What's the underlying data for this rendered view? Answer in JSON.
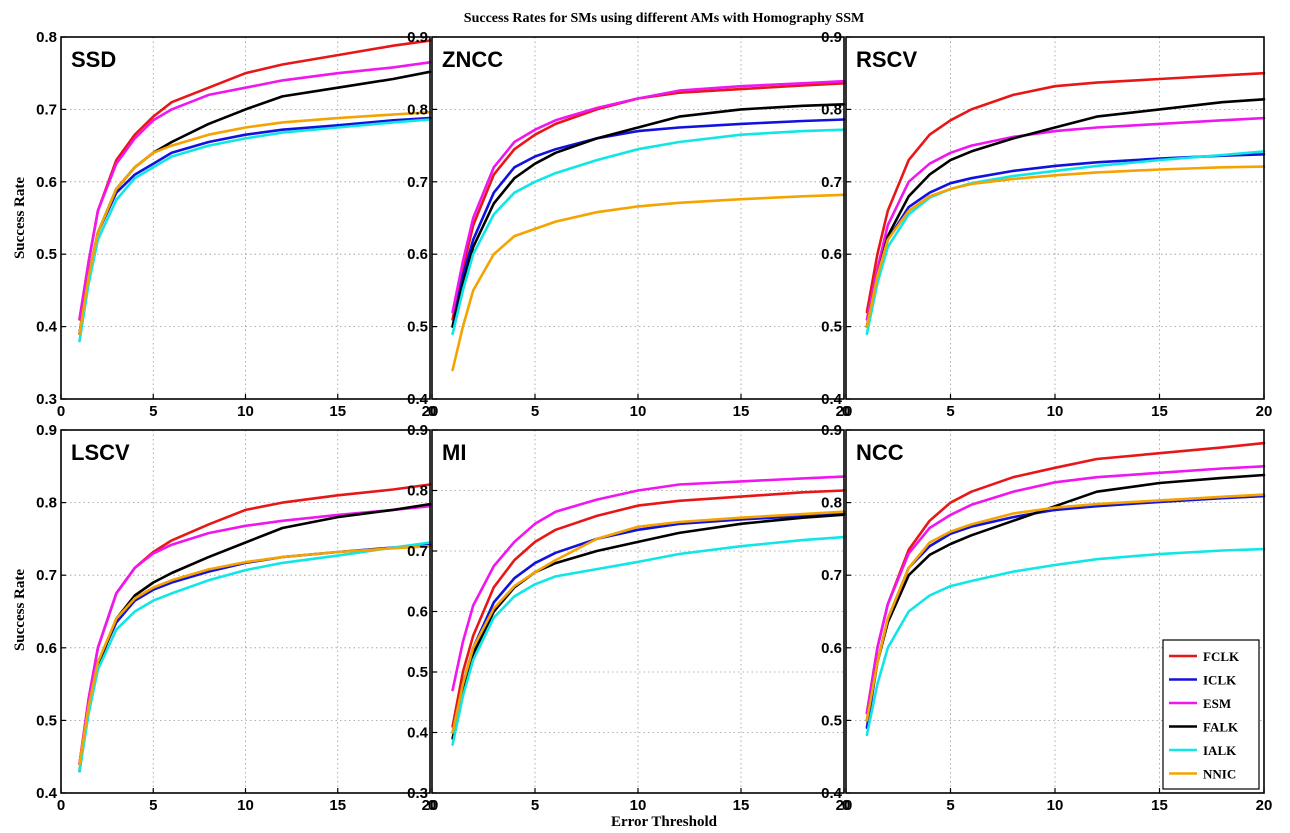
{
  "title": "Success Rates for SMs using different AMs with Homography SSM",
  "xlabel": "Error Threshold",
  "ylabel": "Success Rate",
  "colors": {
    "FCLK": "#e81717",
    "ICLK": "#1212dd",
    "ESM": "#f016f0",
    "FALK": "#000000",
    "IALK": "#11e6e6",
    "NNIC": "#f5a300"
  },
  "legend": {
    "placement": "bottom-right of NCC panel",
    "entries": [
      "FCLK",
      "ICLK",
      "ESM",
      "FALK",
      "IALK",
      "NNIC"
    ]
  },
  "chart_data": [
    {
      "type": "line",
      "title": "SSD",
      "xlim": [
        0,
        20
      ],
      "ylim": [
        0.3,
        0.8
      ],
      "xticks": [
        0,
        5,
        10,
        15,
        20
      ],
      "yticks": [
        0.3,
        0.4,
        0.5,
        0.6,
        0.7,
        0.8
      ],
      "grid": true,
      "x": [
        1,
        1.5,
        2,
        3,
        4,
        5,
        6,
        8,
        10,
        12,
        15,
        18,
        20
      ],
      "series": [
        {
          "name": "FCLK",
          "values": [
            0.41,
            0.49,
            0.56,
            0.63,
            0.665,
            0.69,
            0.71,
            0.73,
            0.75,
            0.762,
            0.775,
            0.788,
            0.795
          ]
        },
        {
          "name": "ICLK",
          "values": [
            0.39,
            0.47,
            0.53,
            0.585,
            0.61,
            0.625,
            0.64,
            0.655,
            0.665,
            0.672,
            0.678,
            0.685,
            0.688
          ]
        },
        {
          "name": "ESM",
          "values": [
            0.41,
            0.49,
            0.56,
            0.625,
            0.66,
            0.685,
            0.7,
            0.72,
            0.73,
            0.74,
            0.75,
            0.758,
            0.765
          ]
        },
        {
          "name": "FALK",
          "values": [
            0.39,
            0.47,
            0.53,
            0.59,
            0.62,
            0.64,
            0.655,
            0.68,
            0.7,
            0.718,
            0.73,
            0.742,
            0.752
          ]
        },
        {
          "name": "IALK",
          "values": [
            0.38,
            0.46,
            0.52,
            0.575,
            0.605,
            0.62,
            0.635,
            0.65,
            0.66,
            0.668,
            0.675,
            0.682,
            0.686
          ]
        },
        {
          "name": "NNIC",
          "values": [
            0.39,
            0.47,
            0.53,
            0.59,
            0.62,
            0.64,
            0.65,
            0.665,
            0.675,
            0.682,
            0.688,
            0.693,
            0.696
          ]
        }
      ]
    },
    {
      "type": "line",
      "title": "ZNCC",
      "xlim": [
        0,
        20
      ],
      "ylim": [
        0.4,
        0.9
      ],
      "xticks": [
        0,
        5,
        10,
        15,
        20
      ],
      "yticks": [
        0.4,
        0.5,
        0.6,
        0.7,
        0.8,
        0.9
      ],
      "grid": true,
      "x": [
        1,
        1.5,
        2,
        3,
        4,
        5,
        6,
        8,
        10,
        12,
        15,
        18,
        20
      ],
      "series": [
        {
          "name": "FCLK",
          "values": [
            0.51,
            0.58,
            0.64,
            0.71,
            0.745,
            0.765,
            0.78,
            0.8,
            0.815,
            0.823,
            0.828,
            0.833,
            0.836
          ]
        },
        {
          "name": "ICLK",
          "values": [
            0.5,
            0.57,
            0.62,
            0.685,
            0.72,
            0.735,
            0.745,
            0.76,
            0.77,
            0.775,
            0.78,
            0.784,
            0.786
          ]
        },
        {
          "name": "ESM",
          "values": [
            0.52,
            0.59,
            0.65,
            0.72,
            0.755,
            0.772,
            0.785,
            0.802,
            0.815,
            0.826,
            0.832,
            0.836,
            0.839
          ]
        },
        {
          "name": "FALK",
          "values": [
            0.5,
            0.56,
            0.61,
            0.67,
            0.705,
            0.725,
            0.74,
            0.76,
            0.775,
            0.79,
            0.8,
            0.805,
            0.807
          ]
        },
        {
          "name": "IALK",
          "values": [
            0.49,
            0.55,
            0.6,
            0.655,
            0.685,
            0.7,
            0.712,
            0.73,
            0.745,
            0.755,
            0.765,
            0.77,
            0.772
          ]
        },
        {
          "name": "NNIC",
          "values": [
            0.44,
            0.5,
            0.55,
            0.6,
            0.625,
            0.635,
            0.645,
            0.658,
            0.666,
            0.671,
            0.676,
            0.68,
            0.682
          ]
        }
      ]
    },
    {
      "type": "line",
      "title": "RSCV",
      "xlim": [
        0,
        20
      ],
      "ylim": [
        0.4,
        0.9
      ],
      "xticks": [
        0,
        5,
        10,
        15,
        20
      ],
      "yticks": [
        0.4,
        0.5,
        0.6,
        0.7,
        0.8,
        0.9
      ],
      "grid": true,
      "x": [
        1,
        1.5,
        2,
        3,
        4,
        5,
        6,
        8,
        10,
        12,
        15,
        18,
        20
      ],
      "series": [
        {
          "name": "FCLK",
          "values": [
            0.52,
            0.6,
            0.66,
            0.73,
            0.765,
            0.785,
            0.8,
            0.82,
            0.832,
            0.837,
            0.842,
            0.847,
            0.85
          ]
        },
        {
          "name": "ICLK",
          "values": [
            0.5,
            0.57,
            0.62,
            0.665,
            0.685,
            0.698,
            0.705,
            0.715,
            0.722,
            0.727,
            0.732,
            0.736,
            0.738
          ]
        },
        {
          "name": "ESM",
          "values": [
            0.51,
            0.58,
            0.64,
            0.7,
            0.725,
            0.74,
            0.75,
            0.762,
            0.77,
            0.775,
            0.78,
            0.785,
            0.788
          ]
        },
        {
          "name": "FALK",
          "values": [
            0.5,
            0.57,
            0.625,
            0.68,
            0.71,
            0.73,
            0.742,
            0.76,
            0.775,
            0.79,
            0.8,
            0.81,
            0.814
          ]
        },
        {
          "name": "IALK",
          "values": [
            0.49,
            0.56,
            0.61,
            0.655,
            0.678,
            0.69,
            0.698,
            0.708,
            0.715,
            0.722,
            0.73,
            0.737,
            0.742
          ]
        },
        {
          "name": "NNIC",
          "values": [
            0.5,
            0.57,
            0.62,
            0.66,
            0.68,
            0.69,
            0.697,
            0.704,
            0.709,
            0.713,
            0.717,
            0.72,
            0.721
          ]
        }
      ]
    },
    {
      "type": "line",
      "title": "LSCV",
      "xlim": [
        0,
        20
      ],
      "ylim": [
        0.4,
        0.9
      ],
      "xticks": [
        0,
        5,
        10,
        15,
        20
      ],
      "yticks": [
        0.4,
        0.5,
        0.6,
        0.7,
        0.8,
        0.9
      ],
      "grid": true,
      "x": [
        1,
        1.5,
        2,
        3,
        4,
        5,
        6,
        8,
        10,
        12,
        15,
        18,
        20
      ],
      "series": [
        {
          "name": "FCLK",
          "values": [
            0.44,
            0.53,
            0.6,
            0.675,
            0.71,
            0.732,
            0.748,
            0.77,
            0.79,
            0.8,
            0.81,
            0.818,
            0.825
          ]
        },
        {
          "name": "ICLK",
          "values": [
            0.44,
            0.52,
            0.58,
            0.635,
            0.665,
            0.68,
            0.69,
            0.705,
            0.717,
            0.725,
            0.732,
            0.738,
            0.742
          ]
        },
        {
          "name": "ESM",
          "values": [
            0.44,
            0.53,
            0.6,
            0.675,
            0.71,
            0.73,
            0.742,
            0.758,
            0.768,
            0.775,
            0.783,
            0.79,
            0.795
          ]
        },
        {
          "name": "FALK",
          "values": [
            0.43,
            0.515,
            0.575,
            0.64,
            0.672,
            0.69,
            0.703,
            0.725,
            0.745,
            0.765,
            0.78,
            0.79,
            0.798
          ]
        },
        {
          "name": "IALK",
          "values": [
            0.43,
            0.51,
            0.57,
            0.625,
            0.65,
            0.665,
            0.675,
            0.693,
            0.707,
            0.717,
            0.727,
            0.738,
            0.745
          ]
        },
        {
          "name": "NNIC",
          "values": [
            0.44,
            0.52,
            0.58,
            0.64,
            0.668,
            0.683,
            0.693,
            0.708,
            0.718,
            0.725,
            0.732,
            0.737,
            0.74
          ]
        }
      ]
    },
    {
      "type": "line",
      "title": "MI",
      "xlim": [
        0,
        20
      ],
      "ylim": [
        0.3,
        0.9
      ],
      "xticks": [
        0,
        5,
        10,
        15,
        20
      ],
      "yticks": [
        0.3,
        0.4,
        0.5,
        0.6,
        0.7,
        0.8,
        0.9
      ],
      "grid": true,
      "x": [
        1,
        1.5,
        2,
        3,
        4,
        5,
        6,
        8,
        10,
        12,
        15,
        18,
        20
      ],
      "series": [
        {
          "name": "FCLK",
          "values": [
            0.41,
            0.5,
            0.56,
            0.64,
            0.685,
            0.715,
            0.735,
            0.758,
            0.775,
            0.783,
            0.79,
            0.797,
            0.8
          ]
        },
        {
          "name": "ICLK",
          "values": [
            0.4,
            0.48,
            0.54,
            0.615,
            0.655,
            0.68,
            0.697,
            0.72,
            0.735,
            0.745,
            0.752,
            0.758,
            0.762
          ]
        },
        {
          "name": "ESM",
          "values": [
            0.47,
            0.55,
            0.61,
            0.675,
            0.715,
            0.745,
            0.765,
            0.785,
            0.8,
            0.81,
            0.815,
            0.82,
            0.823
          ]
        },
        {
          "name": "FALK",
          "values": [
            0.39,
            0.47,
            0.53,
            0.6,
            0.64,
            0.665,
            0.68,
            0.7,
            0.715,
            0.73,
            0.745,
            0.755,
            0.76
          ]
        },
        {
          "name": "IALK",
          "values": [
            0.38,
            0.46,
            0.52,
            0.59,
            0.625,
            0.645,
            0.658,
            0.67,
            0.682,
            0.695,
            0.708,
            0.718,
            0.723
          ]
        },
        {
          "name": "NNIC",
          "values": [
            0.4,
            0.48,
            0.54,
            0.605,
            0.642,
            0.665,
            0.685,
            0.72,
            0.74,
            0.748,
            0.755,
            0.761,
            0.765
          ]
        }
      ]
    },
    {
      "type": "line",
      "title": "NCC",
      "xlim": [
        0,
        20
      ],
      "ylim": [
        0.4,
        0.9
      ],
      "xticks": [
        0,
        5,
        10,
        15,
        20
      ],
      "yticks": [
        0.4,
        0.5,
        0.6,
        0.7,
        0.8,
        0.9
      ],
      "grid": true,
      "x": [
        1,
        1.5,
        2,
        3,
        4,
        5,
        6,
        8,
        10,
        12,
        15,
        18,
        20
      ],
      "series": [
        {
          "name": "FCLK",
          "values": [
            0.51,
            0.6,
            0.66,
            0.735,
            0.775,
            0.8,
            0.815,
            0.835,
            0.848,
            0.86,
            0.868,
            0.876,
            0.882
          ]
        },
        {
          "name": "ICLK",
          "values": [
            0.49,
            0.58,
            0.64,
            0.71,
            0.74,
            0.757,
            0.767,
            0.78,
            0.79,
            0.795,
            0.801,
            0.806,
            0.809
          ]
        },
        {
          "name": "ESM",
          "values": [
            0.51,
            0.6,
            0.66,
            0.73,
            0.765,
            0.783,
            0.797,
            0.815,
            0.828,
            0.835,
            0.841,
            0.847,
            0.85
          ]
        },
        {
          "name": "FALK",
          "values": [
            0.5,
            0.58,
            0.635,
            0.7,
            0.728,
            0.743,
            0.755,
            0.775,
            0.795,
            0.815,
            0.827,
            0.834,
            0.838
          ]
        },
        {
          "name": "IALK",
          "values": [
            0.48,
            0.55,
            0.6,
            0.65,
            0.672,
            0.685,
            0.692,
            0.705,
            0.714,
            0.722,
            0.729,
            0.734,
            0.736
          ]
        },
        {
          "name": "NNIC",
          "values": [
            0.5,
            0.58,
            0.64,
            0.71,
            0.745,
            0.76,
            0.77,
            0.785,
            0.793,
            0.798,
            0.803,
            0.808,
            0.811
          ]
        }
      ]
    }
  ]
}
